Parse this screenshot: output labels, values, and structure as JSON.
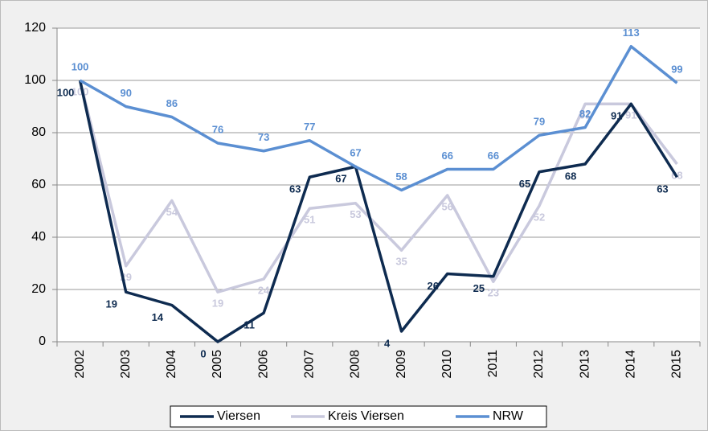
{
  "chart_data": {
    "type": "line",
    "categories": [
      "2002",
      "2003",
      "2004",
      "2005",
      "2006",
      "2007",
      "2008",
      "2009",
      "2010",
      "2011",
      "2012",
      "2013",
      "2014",
      "2015"
    ],
    "series": [
      {
        "name": "Viersen",
        "color": "#0e2b50",
        "values": [
          100,
          19,
          14,
          0,
          11,
          63,
          67,
          4,
          26,
          25,
          65,
          68,
          91,
          63
        ]
      },
      {
        "name": "Kreis Viersen",
        "color": "#c9c9dd",
        "values": [
          100,
          29,
          54,
          19,
          24,
          51,
          53,
          35,
          56,
          23,
          52,
          91,
          91,
          68
        ]
      },
      {
        "name": "NRW",
        "color": "#5b8fd2",
        "values": [
          100,
          90,
          86,
          76,
          73,
          77,
          67,
          58,
          66,
          66,
          79,
          82,
          113,
          99
        ]
      }
    ],
    "ylim": [
      0,
      120
    ],
    "yticks": [
      0,
      20,
      40,
      60,
      80,
      100,
      120
    ],
    "grid": true,
    "legend": "bottom"
  }
}
